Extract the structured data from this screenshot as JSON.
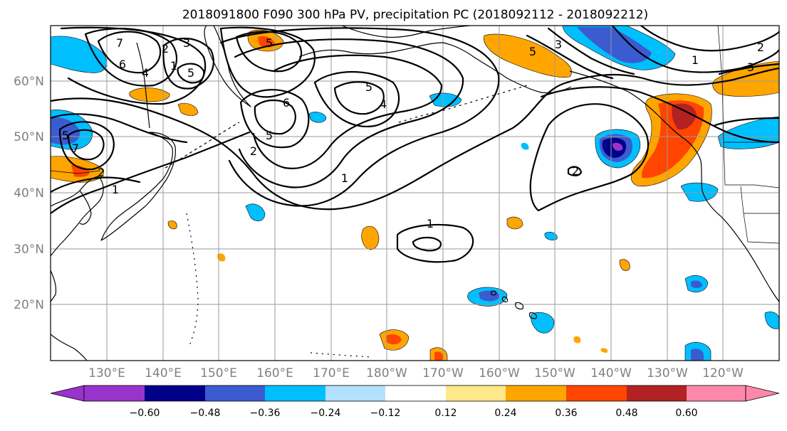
{
  "title": "2018091800 F090 300 hPa PV, precipitation PC (2018092112 - 2018092212)",
  "map": {
    "lat_labels": [
      "60°N",
      "50°N",
      "40°N",
      "30°N",
      "20°N"
    ],
    "lon_labels": [
      "130°E",
      "140°E",
      "150°E",
      "160°E",
      "170°E",
      "180°W",
      "170°W",
      "160°W",
      "150°W",
      "140°W",
      "130°W",
      "120°W"
    ],
    "pv_contour_labels": [
      "5",
      "7",
      "6",
      "4",
      "2",
      "3",
      "1",
      "5",
      "6",
      "5",
      "4",
      "2",
      "5",
      "1",
      "2",
      "1",
      "2",
      "5",
      "3",
      "1",
      "2",
      "3",
      "7",
      "5",
      "1"
    ]
  },
  "colorbar": {
    "colors": [
      "#9933cc",
      "#000088",
      "#3b5bd0",
      "#00bfff",
      "#b3e0ff",
      "#ffffff",
      "#ffe88a",
      "#ffa500",
      "#ff4500",
      "#b22222",
      "#ff88aa"
    ],
    "tick_labels": [
      "−0.60",
      "−0.48",
      "−0.36",
      "−0.24",
      "−0.12",
      "0.12",
      "0.24",
      "0.36",
      "0.48",
      "0.60"
    ]
  }
}
